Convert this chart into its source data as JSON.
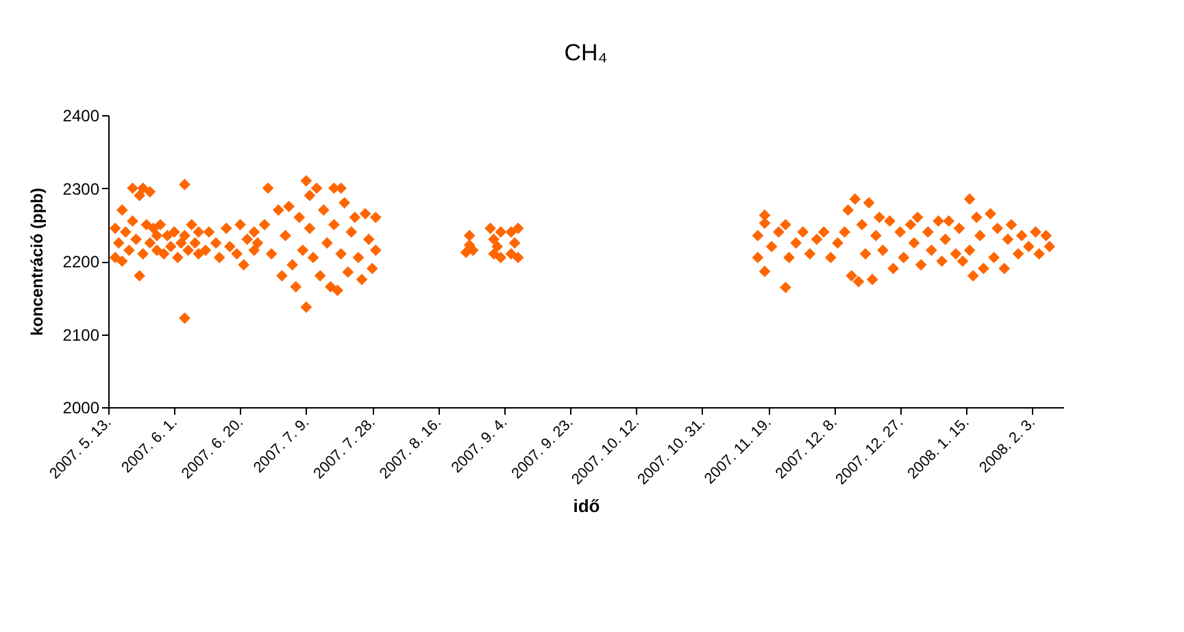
{
  "chart_data": {
    "type": "scatter",
    "title": "CH₄",
    "xlabel": "idő",
    "ylabel": "koncentráció (ppb)",
    "marker": "diamond",
    "grid": false,
    "xlim": [
      "2007-05-13",
      "2008-02-12"
    ],
    "xticks": [
      {
        "value": "2007-05-13",
        "label": "2007. 5. 13."
      },
      {
        "value": "2007-06-01",
        "label": "2007. 6. 1."
      },
      {
        "value": "2007-06-20",
        "label": "2007. 6. 20."
      },
      {
        "value": "2007-07-09",
        "label": "2007. 7. 9."
      },
      {
        "value": "2007-07-28",
        "label": "2007. 7. 28."
      },
      {
        "value": "2007-08-16",
        "label": "2007. 8. 16."
      },
      {
        "value": "2007-09-04",
        "label": "2007. 9. 4."
      },
      {
        "value": "2007-09-23",
        "label": "2007. 9. 23."
      },
      {
        "value": "2007-10-12",
        "label": "2007. 10. 12."
      },
      {
        "value": "2007-10-31",
        "label": "2007. 10. 31."
      },
      {
        "value": "2007-11-19",
        "label": "2007. 11. 19."
      },
      {
        "value": "2007-12-08",
        "label": "2007. 12. 8."
      },
      {
        "value": "2007-12-27",
        "label": "2007. 12. 27."
      },
      {
        "value": "2008-01-15",
        "label": "2008. 1. 15."
      },
      {
        "value": "2008-02-03",
        "label": "2008. 2. 3."
      }
    ],
    "ylim": [
      2000,
      2400
    ],
    "yticks": [
      2000,
      2100,
      2200,
      2300,
      2400
    ],
    "series": [
      {
        "color": "#ff6600",
        "x": [
          "2007-05-15",
          "2007-05-15",
          "2007-05-16",
          "2007-05-17",
          "2007-05-17",
          "2007-05-18",
          "2007-05-19",
          "2007-05-20",
          "2007-05-20",
          "2007-05-21",
          "2007-05-22",
          "2007-05-22",
          "2007-05-23",
          "2007-05-23",
          "2007-05-24",
          "2007-05-25",
          "2007-05-25",
          "2007-05-26",
          "2007-05-27",
          "2007-05-27",
          "2007-05-28",
          "2007-05-29",
          "2007-05-30",
          "2007-05-31",
          "2007-06-01",
          "2007-06-02",
          "2007-06-03",
          "2007-06-04",
          "2007-06-04",
          "2007-06-04",
          "2007-06-05",
          "2007-06-06",
          "2007-06-07",
          "2007-06-08",
          "2007-06-08",
          "2007-06-10",
          "2007-06-11",
          "2007-06-13",
          "2007-06-14",
          "2007-06-16",
          "2007-06-17",
          "2007-06-19",
          "2007-06-20",
          "2007-06-21",
          "2007-06-22",
          "2007-06-24",
          "2007-06-24",
          "2007-06-25",
          "2007-06-27",
          "2007-06-28",
          "2007-06-29",
          "2007-07-01",
          "2007-07-02",
          "2007-07-03",
          "2007-07-04",
          "2007-07-05",
          "2007-07-06",
          "2007-07-07",
          "2007-07-08",
          "2007-07-09",
          "2007-07-09",
          "2007-07-10",
          "2007-07-10",
          "2007-07-11",
          "2007-07-12",
          "2007-07-13",
          "2007-07-14",
          "2007-07-15",
          "2007-07-16",
          "2007-07-17",
          "2007-07-17",
          "2007-07-18",
          "2007-07-19",
          "2007-07-19",
          "2007-07-20",
          "2007-07-21",
          "2007-07-22",
          "2007-07-23",
          "2007-07-24",
          "2007-07-25",
          "2007-07-26",
          "2007-07-27",
          "2007-07-28",
          "2007-07-29",
          "2007-07-29",
          "2007-08-24",
          "2007-08-25",
          "2007-08-25",
          "2007-08-26",
          "2007-08-31",
          "2007-09-01",
          "2007-09-01",
          "2007-09-02",
          "2007-09-03",
          "2007-09-03",
          "2007-09-06",
          "2007-09-06",
          "2007-09-07",
          "2007-09-08",
          "2007-09-08",
          "2007-11-16",
          "2007-11-16",
          "2007-11-18",
          "2007-11-18",
          "2007-11-18",
          "2007-11-20",
          "2007-11-22",
          "2007-11-24",
          "2007-11-24",
          "2007-11-25",
          "2007-11-27",
          "2007-11-29",
          "2007-12-01",
          "2007-12-03",
          "2007-12-05",
          "2007-12-07",
          "2007-12-09",
          "2007-12-11",
          "2007-12-12",
          "2007-12-13",
          "2007-12-14",
          "2007-12-15",
          "2007-12-16",
          "2007-12-17",
          "2007-12-18",
          "2007-12-19",
          "2007-12-20",
          "2007-12-21",
          "2007-12-22",
          "2007-12-24",
          "2007-12-25",
          "2007-12-27",
          "2007-12-28",
          "2007-12-30",
          "2007-12-31",
          "2008-01-01",
          "2008-01-02",
          "2008-01-04",
          "2008-01-05",
          "2008-01-07",
          "2008-01-08",
          "2008-01-09",
          "2008-01-10",
          "2008-01-12",
          "2008-01-13",
          "2008-01-14",
          "2008-01-16",
          "2008-01-16",
          "2008-01-17",
          "2008-01-18",
          "2008-01-19",
          "2008-01-20",
          "2008-01-22",
          "2008-01-23",
          "2008-01-24",
          "2008-01-26",
          "2008-01-27",
          "2008-01-28",
          "2008-01-30",
          "2008-01-31",
          "2008-02-02",
          "2008-02-04",
          "2008-02-05",
          "2008-02-07",
          "2008-02-08"
        ],
        "values": [
          2205,
          2245,
          2225,
          2270,
          2200,
          2240,
          2215,
          2300,
          2255,
          2230,
          2180,
          2290,
          2300,
          2210,
          2250,
          2295,
          2225,
          2245,
          2215,
          2235,
          2250,
          2210,
          2235,
          2220,
          2240,
          2205,
          2225,
          2305,
          2122,
          2235,
          2215,
          2250,
          2225,
          2210,
          2240,
          2215,
          2240,
          2225,
          2205,
          2245,
          2220,
          2210,
          2250,
          2195,
          2230,
          2215,
          2240,
          2225,
          2250,
          2300,
          2210,
          2270,
          2180,
          2235,
          2275,
          2195,
          2165,
          2260,
          2215,
          2137,
          2310,
          2290,
          2245,
          2205,
          2300,
          2180,
          2270,
          2225,
          2165,
          2300,
          2250,
          2160,
          2300,
          2210,
          2280,
          2185,
          2240,
          2260,
          2205,
          2175,
          2265,
          2230,
          2190,
          2215,
          2260,
          2212,
          2235,
          2222,
          2215,
          2245,
          2210,
          2230,
          2220,
          2240,
          2205,
          2240,
          2210,
          2225,
          2245,
          2205,
          2205,
          2235,
          2263,
          2252,
          2186,
          2220,
          2240,
          2250,
          2164,
          2205,
          2225,
          2240,
          2210,
          2230,
          2240,
          2205,
          2225,
          2240,
          2270,
          2180,
          2285,
          2172,
          2250,
          2210,
          2280,
          2175,
          2235,
          2260,
          2215,
          2255,
          2190,
          2240,
          2205,
          2250,
          2225,
          2260,
          2195,
          2240,
          2215,
          2255,
          2200,
          2230,
          2255,
          2210,
          2245,
          2200,
          2285,
          2215,
          2180,
          2260,
          2235,
          2190,
          2265,
          2205,
          2245,
          2190,
          2230,
          2250,
          2210,
          2235,
          2220,
          2240,
          2210,
          2235,
          2220
        ]
      }
    ]
  }
}
